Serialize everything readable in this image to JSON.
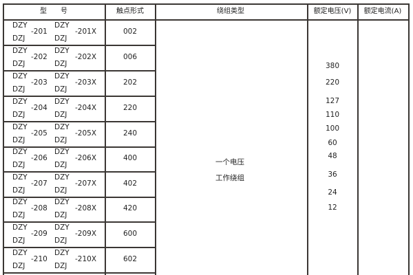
{
  "header": {
    "model": "型　　号",
    "contact_form": "触点形式",
    "winding_type": "绕组类型",
    "rated_voltage": "额定电压(V)",
    "rated_current": "额定电流(A)"
  },
  "rows": [
    {
      "prefix_top": "DZY",
      "prefix_bottom": "DZJ",
      "code": "-201",
      "prefix2_top": "DZY",
      "prefix2_bottom": "DZJ",
      "code2": "-201X",
      "contact": "002"
    },
    {
      "prefix_top": "DZY",
      "prefix_bottom": "DZJ",
      "code": "-202",
      "prefix2_top": "DZY",
      "prefix2_bottom": "DZJ",
      "code2": "-202X",
      "contact": "006"
    },
    {
      "prefix_top": "DZY",
      "prefix_bottom": "DZJ",
      "code": "-203",
      "prefix2_top": "DZY",
      "prefix2_bottom": "DZJ",
      "code2": "-203X",
      "contact": "202"
    },
    {
      "prefix_top": "DZY",
      "prefix_bottom": "DZJ",
      "code": "-204",
      "prefix2_top": "DZY",
      "prefix2_bottom": "DZJ",
      "code2": "-204X",
      "contact": "220"
    },
    {
      "prefix_top": "DZY",
      "prefix_bottom": "DZJ",
      "code": "-205",
      "prefix2_top": "DZY",
      "prefix2_bottom": "DZJ",
      "code2": "-205X",
      "contact": "240"
    },
    {
      "prefix_top": "DZY",
      "prefix_bottom": "DZJ",
      "code": "-206",
      "prefix2_top": "DZY",
      "prefix2_bottom": "DZJ",
      "code2": "-206X",
      "contact": "400"
    },
    {
      "prefix_top": "DZY",
      "prefix_bottom": "DZJ",
      "code": "-207",
      "prefix2_top": "DZY",
      "prefix2_bottom": "DZJ",
      "code2": "-207X",
      "contact": "402"
    },
    {
      "prefix_top": "DZY",
      "prefix_bottom": "DZJ",
      "code": "-208",
      "prefix2_top": "DZY",
      "prefix2_bottom": "DZJ",
      "code2": "-208X",
      "contact": "420"
    },
    {
      "prefix_top": "DZY",
      "prefix_bottom": "DZJ",
      "code": "-209",
      "prefix2_top": "DZY",
      "prefix2_bottom": "DZJ",
      "code2": "-209X",
      "contact": "600"
    },
    {
      "prefix_top": "DZY",
      "prefix_bottom": "DZJ",
      "code": "-210",
      "prefix2_top": "DZY",
      "prefix2_bottom": "DZJ",
      "code2": "-210X",
      "contact": "602"
    }
  ],
  "winding": {
    "line1": "一个电压",
    "line2": "工作绕组"
  },
  "voltages": [
    "380",
    "220",
    "127",
    "110",
    "100",
    "60",
    "48",
    "36",
    "24",
    "12"
  ]
}
